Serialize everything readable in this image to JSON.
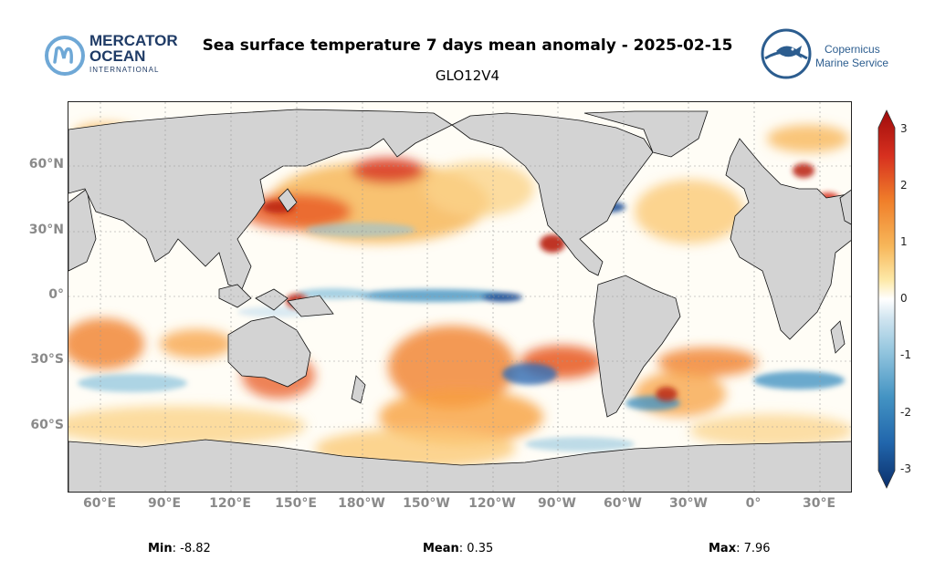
{
  "header": {
    "title": "Sea surface temperature 7 days mean anomaly - 2025-02-15",
    "subtitle": "GLO12V4"
  },
  "logos": {
    "mercator_line1": "MERCATOR",
    "mercator_line2": "OCEAN",
    "mercator_line3": "INTERNATIONAL",
    "copernicus_line1": "Copernicus",
    "copernicus_line2": "Marine Service"
  },
  "map": {
    "y_ticks": [
      "60°N",
      "30°N",
      "0°",
      "30°S",
      "60°S"
    ],
    "x_ticks": [
      "60°E",
      "90°E",
      "120°E",
      "150°E",
      "180°W",
      "150°W",
      "120°W",
      "90°W",
      "60°W",
      "30°W",
      "0°",
      "30°E"
    ],
    "land_color": "#d3d3d3"
  },
  "colorbar": {
    "labels": [
      "3",
      "2",
      "1",
      "0",
      "-1",
      "-2",
      "-3"
    ],
    "range": [
      -3,
      3
    ],
    "colormap": [
      "#0b2f6b",
      "#2166ac",
      "#4393c3",
      "#92c5de",
      "#d1e5f0",
      "#ffffff",
      "#fde9a8",
      "#f7b75a",
      "#f07f2a",
      "#d7301f",
      "#9e0b0b"
    ]
  },
  "stats": {
    "min_label": "Min",
    "min_value": ": -8.82",
    "mean_label": "Mean",
    "mean_value": ": 0.35",
    "max_label": "Max",
    "max_value": ": 7.96"
  }
}
